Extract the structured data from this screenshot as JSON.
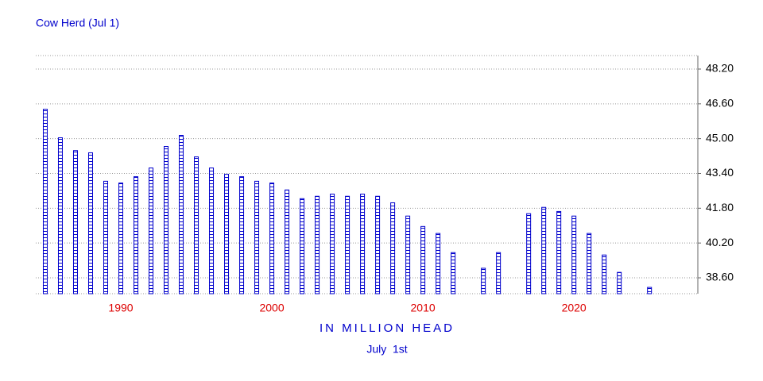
{
  "chart_data": {
    "type": "bar",
    "title": "Cow Herd (Jul 1)",
    "x_label": "IN MILLION HEAD",
    "subtitle": "July  1st",
    "x": [
      1985,
      1986,
      1987,
      1988,
      1989,
      1990,
      1991,
      1992,
      1993,
      1994,
      1995,
      1996,
      1997,
      1998,
      1999,
      2000,
      2001,
      2002,
      2003,
      2004,
      2005,
      2006,
      2007,
      2008,
      2009,
      2010,
      2011,
      2012,
      2013,
      2014,
      2015,
      2016,
      2017,
      2018,
      2019,
      2020,
      2021,
      2022,
      2023,
      2024,
      2025
    ],
    "values": [
      46.35,
      45.04,
      44.45,
      44.35,
      43.04,
      42.96,
      43.25,
      43.65,
      44.64,
      45.15,
      44.16,
      43.65,
      43.36,
      43.25,
      43.04,
      42.96,
      42.64,
      42.24,
      42.35,
      42.45,
      42.35,
      42.45,
      42.35,
      42.05,
      41.44,
      40.96,
      40.64,
      39.76,
      null,
      39.04,
      39.76,
      null,
      41.55,
      41.84,
      41.65,
      41.44,
      40.64,
      39.65,
      38.85,
      null,
      38.16
    ],
    "color": "#0000cc",
    "xlim": [
      1984.37,
      2028.2
    ],
    "xticks": [
      1990,
      2000,
      2010,
      2020
    ],
    "ylim": [
      37.87,
      48.82
    ],
    "yticks": [
      {
        "value": 38.6,
        "label": "38.60"
      },
      {
        "value": 40.2,
        "label": "40.20"
      },
      {
        "value": 41.8,
        "label": "41.80"
      },
      {
        "value": 43.4,
        "label": "43.40"
      },
      {
        "value": 45,
        "label": "45.00"
      },
      {
        "value": 46.6,
        "label": "46.60"
      },
      {
        "value": 48.2,
        "label": "48.20"
      }
    ],
    "grid": true
  }
}
